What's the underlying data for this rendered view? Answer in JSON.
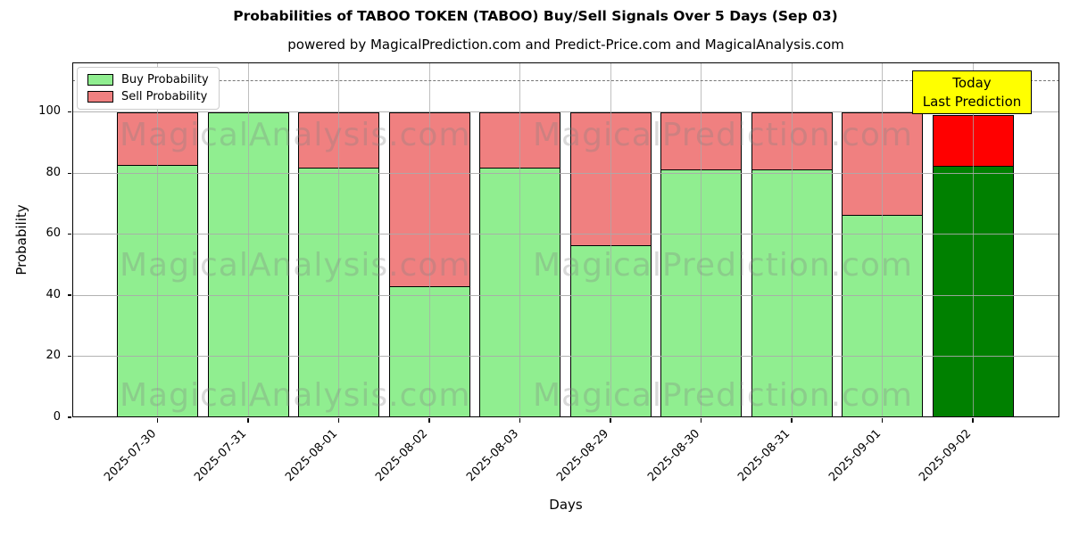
{
  "chart_data": {
    "type": "bar",
    "stacked": true,
    "title": "Probabilities of TABOO TOKEN (TABOO) Buy/Sell Signals Over 5 Days (Sep 03)",
    "subtitle": "powered by MagicalPrediction.com and Predict-Price.com and MagicalAnalysis.com",
    "xlabel": "Days",
    "ylabel": "Probability",
    "categories": [
      "2025-07-30",
      "2025-07-31",
      "2025-08-01",
      "2025-08-02",
      "2025-08-03",
      "2025-08-29",
      "2025-08-30",
      "2025-08-31",
      "2025-09-01",
      "2025-09-02"
    ],
    "series": [
      {
        "name": "Buy Probability",
        "color": "#90EE90",
        "values": [
          83,
          100,
          82,
          43,
          82,
          56.5,
          81.5,
          81.5,
          66.5,
          82.5
        ]
      },
      {
        "name": "Sell Probability",
        "color": "#F08080",
        "values": [
          17,
          0,
          18,
          57,
          18,
          43.5,
          18.5,
          18.5,
          33.5,
          16.5
        ]
      }
    ],
    "last_bar_override": {
      "buy_color": "#008000",
      "sell_color": "#FF0000"
    },
    "yticks": [
      0,
      20,
      40,
      60,
      80,
      100
    ],
    "ylim": [
      0,
      116.3
    ],
    "grid": true,
    "grid_above_bars": true,
    "dashed_hline_y": 110.5,
    "legend_position": "upper left",
    "bar_edge_color": "#000000"
  },
  "annotation": {
    "line1": "Today",
    "line2": "Last Prediction",
    "bg_color": "#FFFF00"
  },
  "watermarks": {
    "left_text": "MagicalAnalysis.com",
    "right_text": "MagicalPrediction.com",
    "rows": 3
  }
}
